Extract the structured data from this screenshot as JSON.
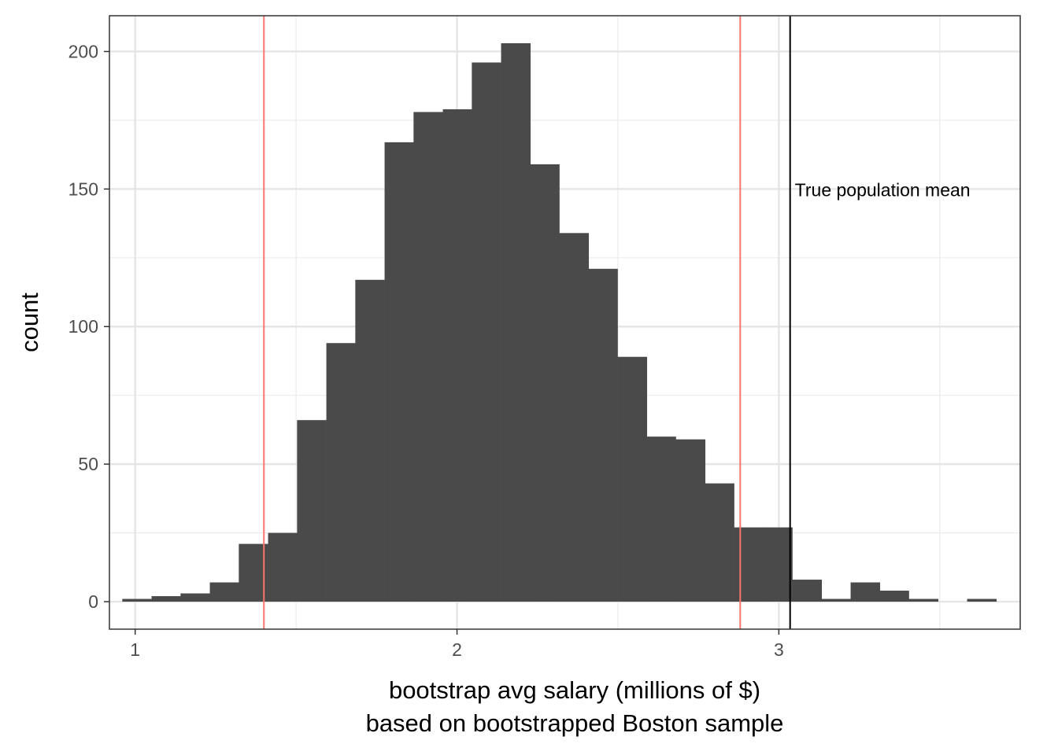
{
  "chart_data": {
    "type": "bar",
    "title": "",
    "xlabel": "bootstrap avg salary (millions of $)",
    "subtitle_xlabel": "based on bootstrapped Boston sample",
    "ylabel": "count",
    "xlim": [
      0.92,
      3.75
    ],
    "ylim": [
      -10,
      213
    ],
    "x_ticks": [
      1,
      2,
      3
    ],
    "y_ticks": [
      0,
      50,
      100,
      150,
      200
    ],
    "grid": true,
    "bin_width": 0.0905,
    "bins": [
      {
        "start": 0.96,
        "count": 1
      },
      {
        "start": 1.051,
        "count": 2
      },
      {
        "start": 1.141,
        "count": 3
      },
      {
        "start": 1.232,
        "count": 7
      },
      {
        "start": 1.322,
        "count": 21
      },
      {
        "start": 1.413,
        "count": 25
      },
      {
        "start": 1.503,
        "count": 66
      },
      {
        "start": 1.594,
        "count": 94
      },
      {
        "start": 1.684,
        "count": 117
      },
      {
        "start": 1.775,
        "count": 167
      },
      {
        "start": 1.865,
        "count": 178
      },
      {
        "start": 1.956,
        "count": 179
      },
      {
        "start": 2.046,
        "count": 196
      },
      {
        "start": 2.137,
        "count": 203
      },
      {
        "start": 2.227,
        "count": 159
      },
      {
        "start": 2.318,
        "count": 134
      },
      {
        "start": 2.408,
        "count": 121
      },
      {
        "start": 2.499,
        "count": 89
      },
      {
        "start": 2.589,
        "count": 60
      },
      {
        "start": 2.68,
        "count": 59
      },
      {
        "start": 2.77,
        "count": 43
      },
      {
        "start": 2.861,
        "count": 27
      },
      {
        "start": 2.951,
        "count": 27
      },
      {
        "start": 3.042,
        "count": 8
      },
      {
        "start": 3.132,
        "count": 1
      },
      {
        "start": 3.223,
        "count": 7
      },
      {
        "start": 3.313,
        "count": 4
      },
      {
        "start": 3.404,
        "count": 1
      },
      {
        "start": 3.494,
        "count": 0
      },
      {
        "start": 3.585,
        "count": 1
      }
    ],
    "bar_color": "#4a4a4a",
    "ci_lines": {
      "values": [
        1.4,
        2.88
      ],
      "color": "#f8766d"
    },
    "mean_line": {
      "value": 3.035,
      "color": "#000000",
      "label": "True population mean",
      "label_y": 150
    }
  }
}
